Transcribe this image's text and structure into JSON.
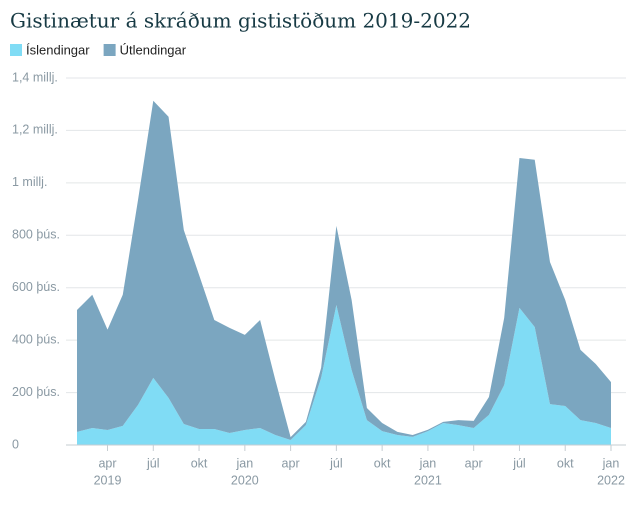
{
  "chart_data": {
    "type": "stacked_area",
    "title": "Gistinætur á skráðum gististöðum 2019-2022",
    "categories": [
      null,
      null,
      "apr",
      null,
      null,
      "júl",
      null,
      null,
      "okt",
      null,
      null,
      "jan",
      null,
      null,
      "apr",
      null,
      null,
      "júl",
      null,
      null,
      "okt",
      null,
      null,
      "jan",
      null,
      null,
      "apr",
      null,
      null,
      "júl",
      null,
      null,
      "okt",
      null,
      null,
      "jan"
    ],
    "years": [
      null,
      null,
      "2019",
      null,
      null,
      null,
      null,
      null,
      null,
      null,
      null,
      "2020",
      null,
      null,
      null,
      null,
      null,
      null,
      null,
      null,
      null,
      null,
      null,
      "2021",
      null,
      null,
      null,
      null,
      null,
      null,
      null,
      null,
      null,
      null,
      null,
      "2022"
    ],
    "series": [
      {
        "name": "Íslendingar",
        "color": "#80dcf5",
        "values": [
          50000,
          65000,
          57000,
          73000,
          153000,
          256000,
          180000,
          80000,
          61000,
          61000,
          46000,
          57000,
          65000,
          38000,
          19000,
          76000,
          256000,
          534000,
          286000,
          95000,
          53000,
          38000,
          31000,
          53000,
          84000,
          76000,
          65000,
          115000,
          229000,
          523000,
          450000,
          156000,
          149000,
          95000,
          84000,
          65000
        ]
      },
      {
        "name": "Útlendingar",
        "color": "#7ba6c0",
        "values": [
          465000,
          508000,
          383000,
          500000,
          782000,
          1057000,
          1072000,
          740000,
          588000,
          416000,
          401000,
          363000,
          412000,
          210000,
          11000,
          12000,
          38000,
          302000,
          267000,
          46000,
          31000,
          12000,
          7000,
          5000,
          4000,
          19000,
          27000,
          68000,
          256000,
          572000,
          638000,
          542000,
          404000,
          268000,
          225000,
          175000
        ]
      }
    ],
    "ylim": [
      0,
      1400000
    ],
    "yticks": [
      0,
      {
        "value": 200000,
        "label": "200 þús."
      },
      {
        "value": 400000,
        "label": "400 þús."
      },
      {
        "value": 600000,
        "label": "600 þús."
      },
      {
        "value": 800000,
        "label": "800 þús."
      },
      {
        "value": 1000000,
        "label": "1 millj."
      },
      {
        "value": 1200000,
        "label": "1,2 millj."
      },
      {
        "value": 1400000,
        "label": "1,4 millj."
      }
    ],
    "grid": true
  }
}
